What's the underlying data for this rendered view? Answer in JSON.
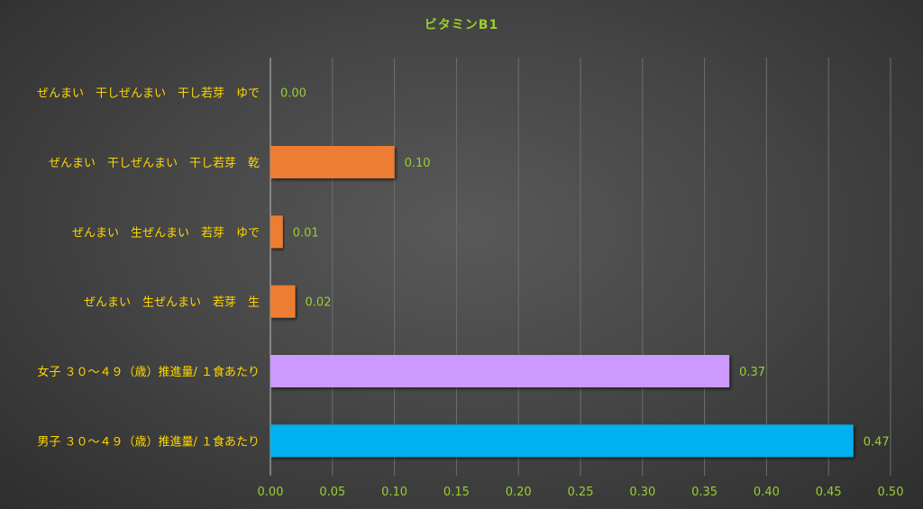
{
  "chart_data": {
    "type": "bar",
    "orientation": "horizontal",
    "title": "ビタミンB1",
    "categories": [
      "ぜんまい　干しぜんまい　干し若芽　ゆで",
      "ぜんまい　干しぜんまい　干し若芽　乾",
      "ぜんまい　生ぜんまい　若芽　ゆで",
      "ぜんまい　生ぜんまい　若芽　生",
      "女子 ３０～４９（歳）推進量/ １食あたり",
      "男子 ３０～４９（歳）推進量/ １食あたり"
    ],
    "values": [
      0.0,
      0.1,
      0.01,
      0.02,
      0.37,
      0.47
    ],
    "data_labels": [
      "0.00",
      "0.10",
      "0.01",
      "0.02",
      "0.37",
      "0.47"
    ],
    "bar_colors": [
      "#ed7d31",
      "#ed7d31",
      "#ed7d31",
      "#ed7d31",
      "#cc99ff",
      "#00b0f0"
    ],
    "xlim": [
      0,
      0.5
    ],
    "xticks": [
      0,
      0.05,
      0.1,
      0.15,
      0.2,
      0.25,
      0.3,
      0.35,
      0.4,
      0.45,
      0.5
    ],
    "xtick_labels": [
      "0.00",
      "0.05",
      "0.10",
      "0.15",
      "0.20",
      "0.25",
      "0.30",
      "0.35",
      "0.40",
      "0.45",
      "0.50"
    ],
    "xlabel": "",
    "ylabel": "",
    "grid": true,
    "legend": "none",
    "colors": {
      "title": "#9acd32",
      "category_label": "#ffd700",
      "tick_label": "#9acd32",
      "data_label": "#9acd32",
      "grid": "#6e6e6e",
      "axis": "#bfbfbf"
    }
  }
}
